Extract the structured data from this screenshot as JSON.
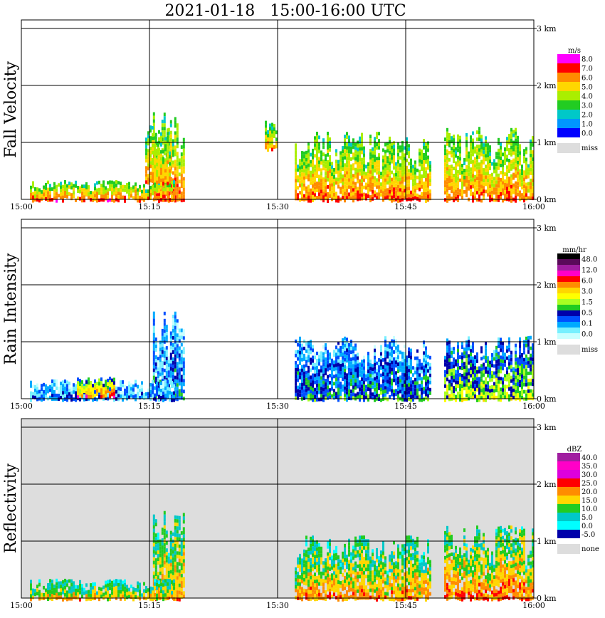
{
  "title": "2021-01-18   15:00-16:00 UTC",
  "chart_data": {
    "type": "heatmap",
    "title": "2021-01-18   15:00-16:00 UTC",
    "x_ticks": [
      "15:00",
      "15:15",
      "15:30",
      "15:45",
      "16:00"
    ],
    "y_ticks": [
      "0 km",
      "1 km",
      "2 km",
      "3 km"
    ],
    "x_range": [
      "15:00",
      "16:00"
    ],
    "y_range_km": [
      0,
      3
    ],
    "grid": true,
    "panels": [
      {
        "id": "fall-velocity",
        "ylabel": "Fall Velocity",
        "unit": "m/s",
        "background": "#ffffff",
        "legend_labels": [
          "8.0",
          "7.0",
          "6.0",
          "5.0",
          "4.0",
          "3.0",
          "2.0",
          "1.0",
          "0.0"
        ],
        "legend_colors": [
          "#ff00ff",
          "#ff0000",
          "#ff8c00",
          "#ffd700",
          "#aaee00",
          "#22cc22",
          "#00c8c8",
          "#0096ff",
          "#0000ff"
        ],
        "miss_label": "miss",
        "miss_color": "#dddddd",
        "blobs": [
          {
            "t0": 15.4,
            "t1": 19.0,
            "h0": 0.0,
            "h1": 1.8,
            "shade": 0.85
          },
          {
            "t0": 1.0,
            "t1": 18.0,
            "h0": 0.0,
            "h1": 0.4,
            "shade": 0.85
          },
          {
            "t0": 14.5,
            "t1": 17.5,
            "h0": 0.3,
            "h1": 1.5,
            "shade": 0.75
          },
          {
            "t0": 28.5,
            "t1": 30.0,
            "h0": 0.9,
            "h1": 1.5,
            "shade": 0.75
          },
          {
            "t0": 32.0,
            "t1": 42.0,
            "h0": 0.0,
            "h1": 1.4,
            "shade": 0.8
          },
          {
            "t0": 42.0,
            "t1": 48.0,
            "h0": 0.0,
            "h1": 1.3,
            "shade": 0.8
          },
          {
            "t0": 49.5,
            "t1": 60.0,
            "h0": 0.0,
            "h1": 1.5,
            "shade": 0.8
          }
        ]
      },
      {
        "id": "rain-intensity",
        "ylabel": "Rain Intensity",
        "unit": "mm/hr",
        "background": "#ffffff",
        "legend_labels": [
          "48.0",
          "12.0",
          "6.0",
          "3.0",
          "1.5",
          "0.5",
          "0.1",
          "0.0"
        ],
        "legend_colors": [
          "#000000",
          "#5a0a5a",
          "#a01ea0",
          "#ff00c8",
          "#ff0000",
          "#ff8c00",
          "#ffd700",
          "#ffff00",
          "#aaff22",
          "#22cc22",
          "#0000aa",
          "#0050ff",
          "#00aaff",
          "#77f0ff",
          "#c8ffff"
        ],
        "miss_label": "miss",
        "miss_color": "#dddddd",
        "blobs": [
          {
            "t0": 15.4,
            "t1": 19.0,
            "h0": 0.0,
            "h1": 1.8,
            "shade": 0.25
          },
          {
            "t0": 1.0,
            "t1": 18.0,
            "h0": 0.0,
            "h1": 0.4,
            "shade": 0.2
          },
          {
            "t0": 6.5,
            "t1": 11.0,
            "h0": 0.05,
            "h1": 0.45,
            "shade": 0.7
          },
          {
            "t0": 32.0,
            "t1": 48.0,
            "h0": 0.0,
            "h1": 1.3,
            "shade": 0.3
          },
          {
            "t0": 49.5,
            "t1": 60.0,
            "h0": 0.0,
            "h1": 1.3,
            "shade": 0.45
          }
        ]
      },
      {
        "id": "reflectivity",
        "ylabel": "Reflectivity",
        "unit": "dBZ",
        "background": "#dddddd",
        "legend_labels": [
          "40.0",
          "35.0",
          "30.0",
          "25.0",
          "20.0",
          "15.0",
          "10.0",
          "5.0",
          "0.0",
          "-5.0"
        ],
        "legend_colors": [
          "#a01ea0",
          "#ff00c8",
          "#dd00dd",
          "#ff0000",
          "#ff8c00",
          "#ffd700",
          "#22cc22",
          "#00c8c8",
          "#00ffff",
          "#0000aa"
        ],
        "miss_label": "none",
        "miss_color": "#dddddd",
        "blobs": [
          {
            "t0": 15.4,
            "t1": 19.0,
            "h0": 0.0,
            "h1": 1.8,
            "shade": 0.55
          },
          {
            "t0": 1.0,
            "t1": 18.0,
            "h0": 0.0,
            "h1": 0.4,
            "shade": 0.5
          },
          {
            "t0": 32.0,
            "t1": 48.0,
            "h0": 0.0,
            "h1": 1.3,
            "shade": 0.55
          },
          {
            "t0": 49.5,
            "t1": 60.0,
            "h0": 0.0,
            "h1": 1.5,
            "shade": 0.6
          }
        ]
      }
    ]
  }
}
